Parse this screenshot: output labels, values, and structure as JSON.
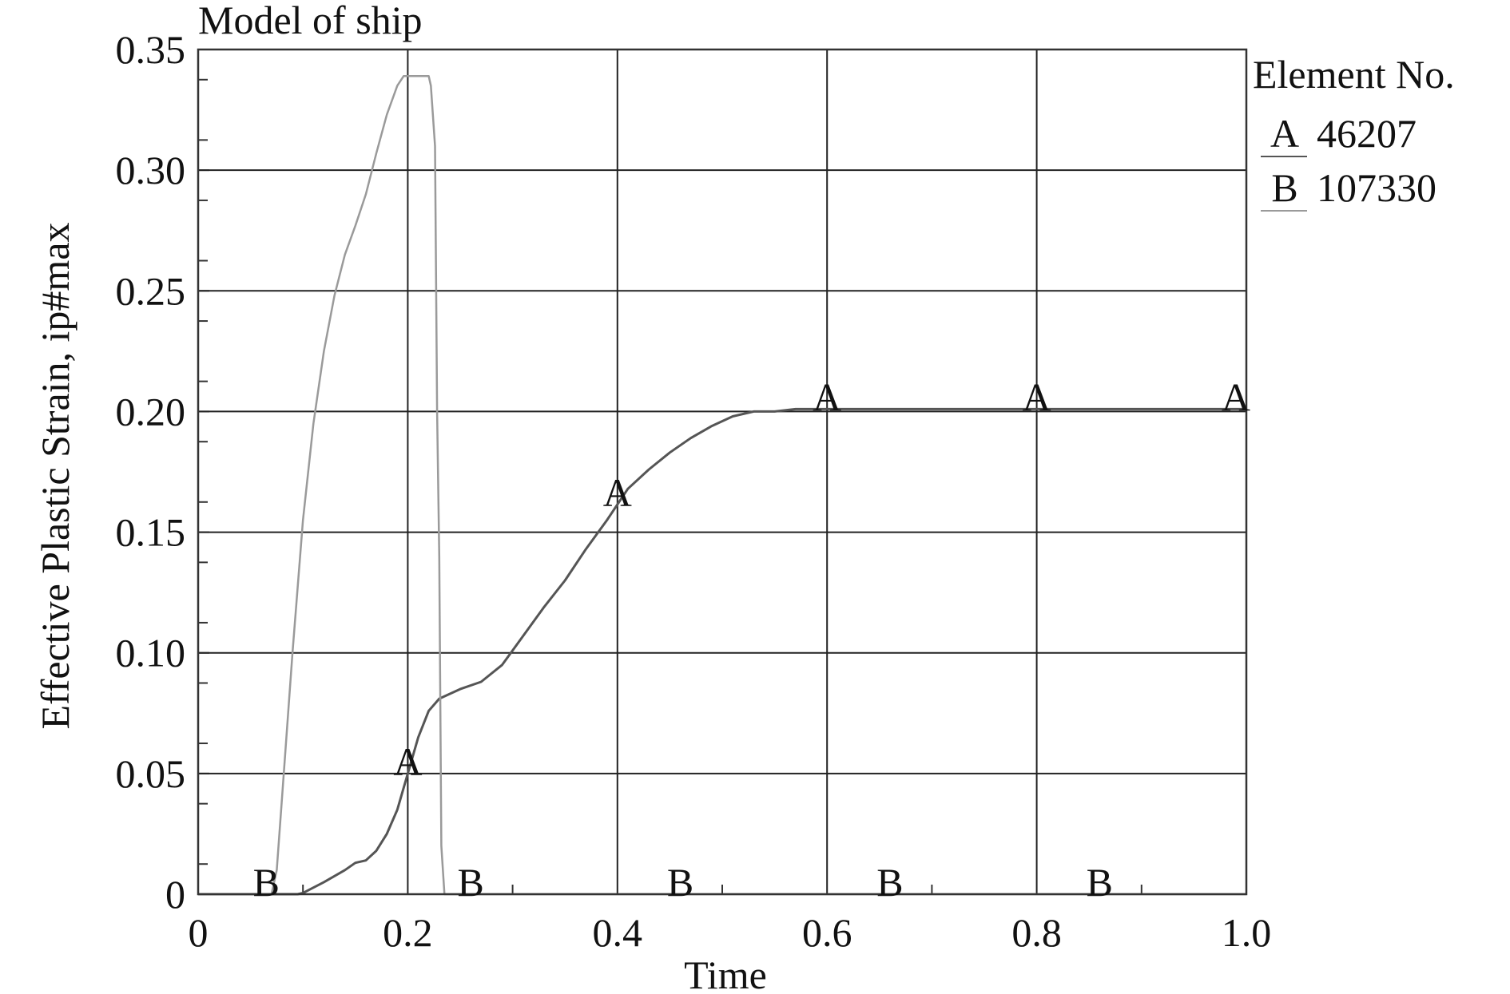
{
  "chart_data": {
    "type": "line",
    "title": "Model of ship",
    "xlabel": "Time",
    "ylabel": "Effective Plastic Strain, ip#max",
    "xlim": [
      0,
      1.0
    ],
    "ylim": [
      0,
      0.35
    ],
    "x_ticks": [
      "0",
      "0.2",
      "0.4",
      "0.6",
      "0.8",
      "1.0"
    ],
    "y_ticks": [
      "0",
      "0.05",
      "0.10",
      "0.15",
      "0.20",
      "0.25",
      "0.30",
      "0.35"
    ],
    "grid": true,
    "legend": {
      "title": "Element No.",
      "position": "right",
      "entries": [
        {
          "marker": "A",
          "name": "46207"
        },
        {
          "marker": "B",
          "name": "107330"
        }
      ]
    },
    "series": [
      {
        "name": "46207",
        "marker": "A",
        "color": "#555555",
        "x": [
          0.0,
          0.095,
          0.1,
          0.12,
          0.14,
          0.15,
          0.16,
          0.17,
          0.18,
          0.19,
          0.2,
          0.21,
          0.22,
          0.23,
          0.25,
          0.27,
          0.29,
          0.31,
          0.33,
          0.35,
          0.37,
          0.39,
          0.41,
          0.43,
          0.45,
          0.47,
          0.49,
          0.51,
          0.53,
          0.55,
          0.57,
          0.6,
          0.7,
          0.8,
          0.9,
          1.0
        ],
        "y": [
          0.0,
          0.0,
          0.0005,
          0.005,
          0.01,
          0.013,
          0.014,
          0.018,
          0.025,
          0.035,
          0.05,
          0.065,
          0.076,
          0.081,
          0.085,
          0.088,
          0.095,
          0.107,
          0.119,
          0.13,
          0.143,
          0.155,
          0.168,
          0.176,
          0.183,
          0.189,
          0.194,
          0.198,
          0.2,
          0.2,
          0.201,
          0.201,
          0.201,
          0.201,
          0.201,
          0.201
        ],
        "marker_x": [
          0.2,
          0.4,
          0.6,
          0.8,
          0.99
        ]
      },
      {
        "name": "107330",
        "marker": "B",
        "color": "#9a9a9a",
        "x": [
          0.0,
          0.07,
          0.075,
          0.08,
          0.09,
          0.1,
          0.11,
          0.12,
          0.13,
          0.14,
          0.15,
          0.16,
          0.17,
          0.18,
          0.19,
          0.196,
          0.2,
          0.21,
          0.22,
          0.222,
          0.226,
          0.228,
          0.23,
          0.232,
          0.235,
          0.3,
          0.5,
          0.7,
          1.0
        ],
        "y": [
          0.0,
          0.0,
          0.01,
          0.04,
          0.1,
          0.155,
          0.195,
          0.225,
          0.248,
          0.265,
          0.277,
          0.29,
          0.307,
          0.323,
          0.335,
          0.339,
          0.339,
          0.339,
          0.339,
          0.335,
          0.31,
          0.2,
          0.14,
          0.02,
          0.0,
          0.0,
          0.0,
          0.0,
          0.0
        ],
        "marker_x": [
          0.065,
          0.26,
          0.46,
          0.66,
          0.86
        ]
      }
    ]
  }
}
